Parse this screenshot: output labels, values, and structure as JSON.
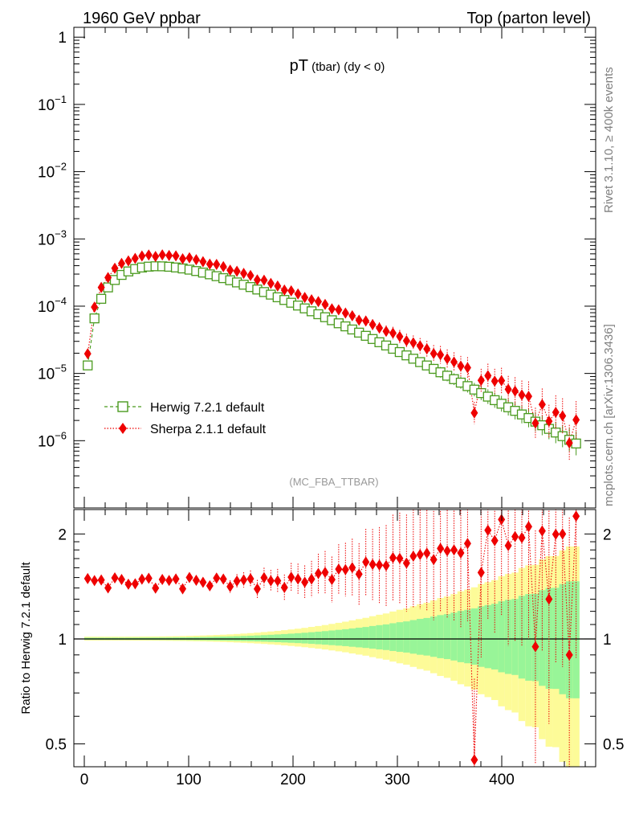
{
  "header": {
    "left": "1960 GeV ppbar",
    "right": "Top (parton level)"
  },
  "side": {
    "rivet": "Rivet 3.1.10, ≥ 400k events",
    "mcplots": "mcplots.cern.ch [arXiv:1306.3436]"
  },
  "chart_data": [
    {
      "type": "scatter",
      "title_main": "pT",
      "title_sub": " (tbar) (dy < 0)",
      "analysis": "(MC_FBA_TTBAR)",
      "xlim": [
        -10,
        490
      ],
      "ylim": [
        1e-07,
        1.4
      ],
      "yscale": "log",
      "ytick_labels": [
        {
          "value": 1,
          "label": "1"
        },
        {
          "value": 0.1,
          "label": "10^-1"
        },
        {
          "value": 0.01,
          "label": "10^-2"
        },
        {
          "value": 0.001,
          "label": "10^-3"
        },
        {
          "value": 0.0001,
          "label": "10^-4"
        },
        {
          "value": 1e-05,
          "label": "10^-5"
        },
        {
          "value": 1e-06,
          "label": "10^-6"
        }
      ],
      "legend_position": "bottom-left",
      "series": [
        {
          "name": "Herwig 7.2.1 default",
          "color": "#4a9a1e",
          "marker": "open-square",
          "line": "dashed"
        },
        {
          "name": "Sherpa 2.1.1 default",
          "color": "#ee0000",
          "marker": "diamond",
          "line": "dotted"
        }
      ]
    },
    {
      "type": "scatter",
      "ylabel": "Ratio to Herwig 7.2.1 default",
      "xlim": [
        -10,
        490
      ],
      "ylim": [
        0.43,
        2.35
      ],
      "yscale": "log",
      "xticks": [
        0,
        100,
        200,
        300,
        400
      ],
      "yticks": [
        0.5,
        1,
        2
      ],
      "band_colors": {
        "inner": "#98f598",
        "outer": "#fdfb98"
      }
    }
  ]
}
